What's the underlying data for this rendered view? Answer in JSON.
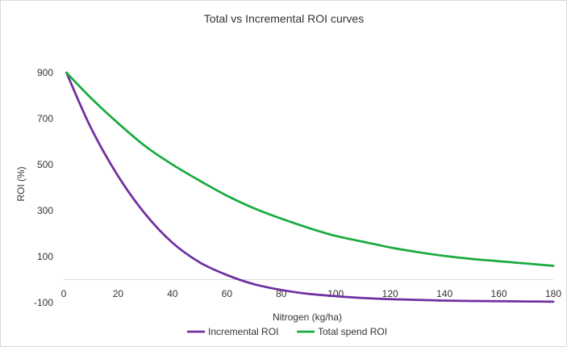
{
  "chart_data": {
    "type": "line",
    "title": "Total vs Incremental ROI curves",
    "xlabel": "Nitrogen (kg/ha)",
    "ylabel": "ROI (%)",
    "xlim": [
      0,
      180
    ],
    "ylim": [
      -100,
      900
    ],
    "x_ticks": [
      "0",
      "20",
      "40",
      "60",
      "80",
      "100",
      "120",
      "140",
      "160",
      "180"
    ],
    "y_ticks": [
      "900",
      "700",
      "500",
      "300",
      "100",
      "-100"
    ],
    "grid": false,
    "legend_position": "bottom",
    "x": [
      1,
      10,
      20,
      30,
      40,
      50,
      60,
      70,
      80,
      90,
      100,
      110,
      120,
      130,
      140,
      150,
      160,
      170,
      180
    ],
    "series": [
      {
        "name": "Incremental ROI",
        "color": "#7030a0",
        "values": [
          900,
          660,
          450,
          285,
          160,
          75,
          20,
          -20,
          -45,
          -62,
          -72,
          -80,
          -85,
          -88,
          -91,
          -93,
          -94,
          -95,
          -96
        ]
      },
      {
        "name": "Total spend ROI",
        "color": "#1aab40",
        "values": [
          900,
          790,
          680,
          580,
          500,
          430,
          365,
          310,
          265,
          225,
          190,
          165,
          140,
          120,
          103,
          90,
          80,
          70,
          60
        ]
      }
    ]
  }
}
